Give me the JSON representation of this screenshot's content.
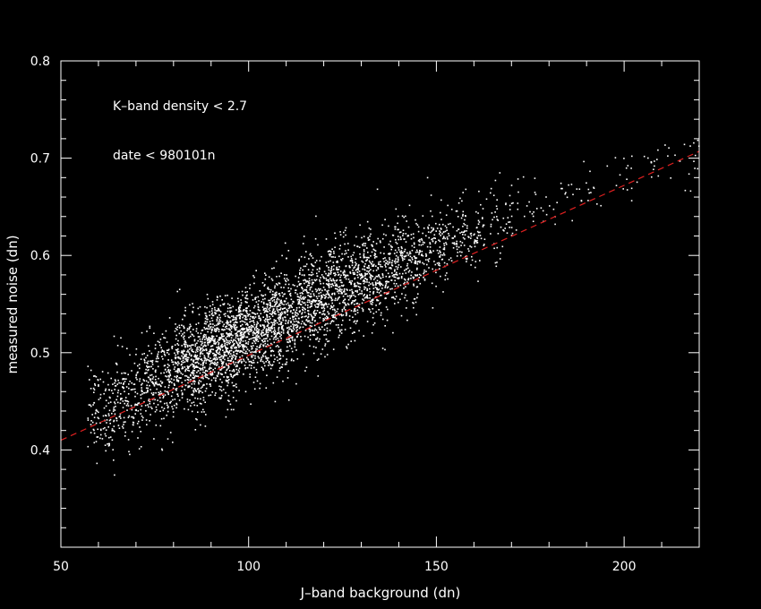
{
  "chart_data": {
    "type": "scatter",
    "title": "",
    "xlabel": "J–band background (dn)",
    "ylabel": "measured noise (dn)",
    "xlim": [
      50,
      220
    ],
    "ylim": [
      0.3,
      0.8
    ],
    "x_ticks": [
      50,
      100,
      150,
      200
    ],
    "y_ticks": [
      0.4,
      0.5,
      0.6,
      0.7,
      0.8
    ],
    "y_tick_labels": [
      "0.4",
      "0.5",
      "0.6",
      "0.7",
      "0.8"
    ],
    "annotations": [
      "K–band density < 2.7",
      "date < 980101n"
    ],
    "grid": false,
    "colors": {
      "background": "#000000",
      "points": "#ffffff",
      "fit_line": "#e02020",
      "axes": "#ffffff"
    },
    "fit_line": {
      "style": "dashed",
      "x": [
        50,
        220
      ],
      "y": [
        0.41,
        0.707
      ]
    },
    "point_clusters": [
      {
        "x": [
          57,
          64
        ],
        "y_center": 0.44,
        "y_spread": 0.022,
        "count": 120
      },
      {
        "x": [
          64,
          72
        ],
        "y_center": 0.455,
        "y_spread": 0.023,
        "count": 170
      },
      {
        "x": [
          72,
          80
        ],
        "y_center": 0.47,
        "y_spread": 0.024,
        "count": 240
      },
      {
        "x": [
          80,
          88
        ],
        "y_center": 0.49,
        "y_spread": 0.024,
        "count": 420
      },
      {
        "x": [
          88,
          97
        ],
        "y_center": 0.505,
        "y_spread": 0.024,
        "count": 620
      },
      {
        "x": [
          97,
          105
        ],
        "y_center": 0.52,
        "y_spread": 0.024,
        "count": 480
      },
      {
        "x": [
          105,
          113
        ],
        "y_center": 0.535,
        "y_spread": 0.025,
        "count": 420
      },
      {
        "x": [
          113,
          121
        ],
        "y_center": 0.552,
        "y_spread": 0.025,
        "count": 380
      },
      {
        "x": [
          121,
          129
        ],
        "y_center": 0.567,
        "y_spread": 0.025,
        "count": 360
      },
      {
        "x": [
          129,
          137
        ],
        "y_center": 0.578,
        "y_spread": 0.024,
        "count": 300
      },
      {
        "x": [
          137,
          145
        ],
        "y_center": 0.593,
        "y_spread": 0.023,
        "count": 240
      },
      {
        "x": [
          145,
          153
        ],
        "y_center": 0.608,
        "y_spread": 0.022,
        "count": 160
      },
      {
        "x": [
          153,
          161
        ],
        "y_center": 0.62,
        "y_spread": 0.02,
        "count": 110
      },
      {
        "x": [
          161,
          170
        ],
        "y_center": 0.632,
        "y_spread": 0.018,
        "count": 70
      },
      {
        "x": [
          170,
          182
        ],
        "y_center": 0.648,
        "y_spread": 0.016,
        "count": 30
      },
      {
        "x": [
          182,
          195
        ],
        "y_center": 0.668,
        "y_spread": 0.015,
        "count": 25
      },
      {
        "x": [
          195,
          205
        ],
        "y_center": 0.682,
        "y_spread": 0.014,
        "count": 15
      },
      {
        "x": [
          205,
          220
        ],
        "y_center": 0.7,
        "y_spread": 0.014,
        "count": 30
      }
    ]
  }
}
